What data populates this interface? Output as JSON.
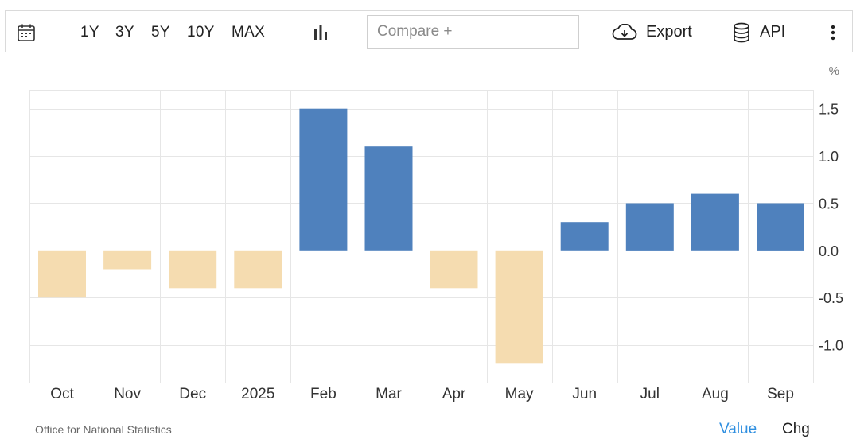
{
  "toolbar": {
    "calendar_icon": "calendar-icon",
    "ranges": [
      "1Y",
      "3Y",
      "5Y",
      "10Y",
      "MAX"
    ],
    "chart_type_icon": "bar-chart-icon",
    "compare_placeholder": "Compare +",
    "export_icon": "cloud-download-icon",
    "export_label": "Export",
    "api_icon": "database-icon",
    "api_label": "API",
    "more_icon": "more-vertical-icon"
  },
  "chart_data": {
    "type": "bar",
    "unit": "%",
    "categories": [
      "Oct",
      "Nov",
      "Dec",
      "2025",
      "Feb",
      "Mar",
      "Apr",
      "May",
      "Jun",
      "Jul",
      "Aug",
      "Sep"
    ],
    "values": [
      -0.5,
      -0.2,
      -0.4,
      -0.4,
      1.5,
      1.1,
      -0.4,
      -1.2,
      0.3,
      0.5,
      0.6,
      0.5
    ],
    "y_ticks": [
      "1.5",
      "1.0",
      "0.5",
      "0.0",
      "-0.5",
      "-1.0"
    ],
    "y_tick_values": [
      1.5,
      1.0,
      0.5,
      0.0,
      -0.5,
      -1.0
    ],
    "ylim": [
      -1.4,
      1.7
    ],
    "y_axis_position": "right",
    "grid": true,
    "colors": {
      "positive": "#4f81bd",
      "negative": "#f5dcb0",
      "grid": "#e6e6e6"
    }
  },
  "footer": {
    "source": "Office for National Statistics",
    "value_label": "Value",
    "chg_label": "Chg"
  }
}
